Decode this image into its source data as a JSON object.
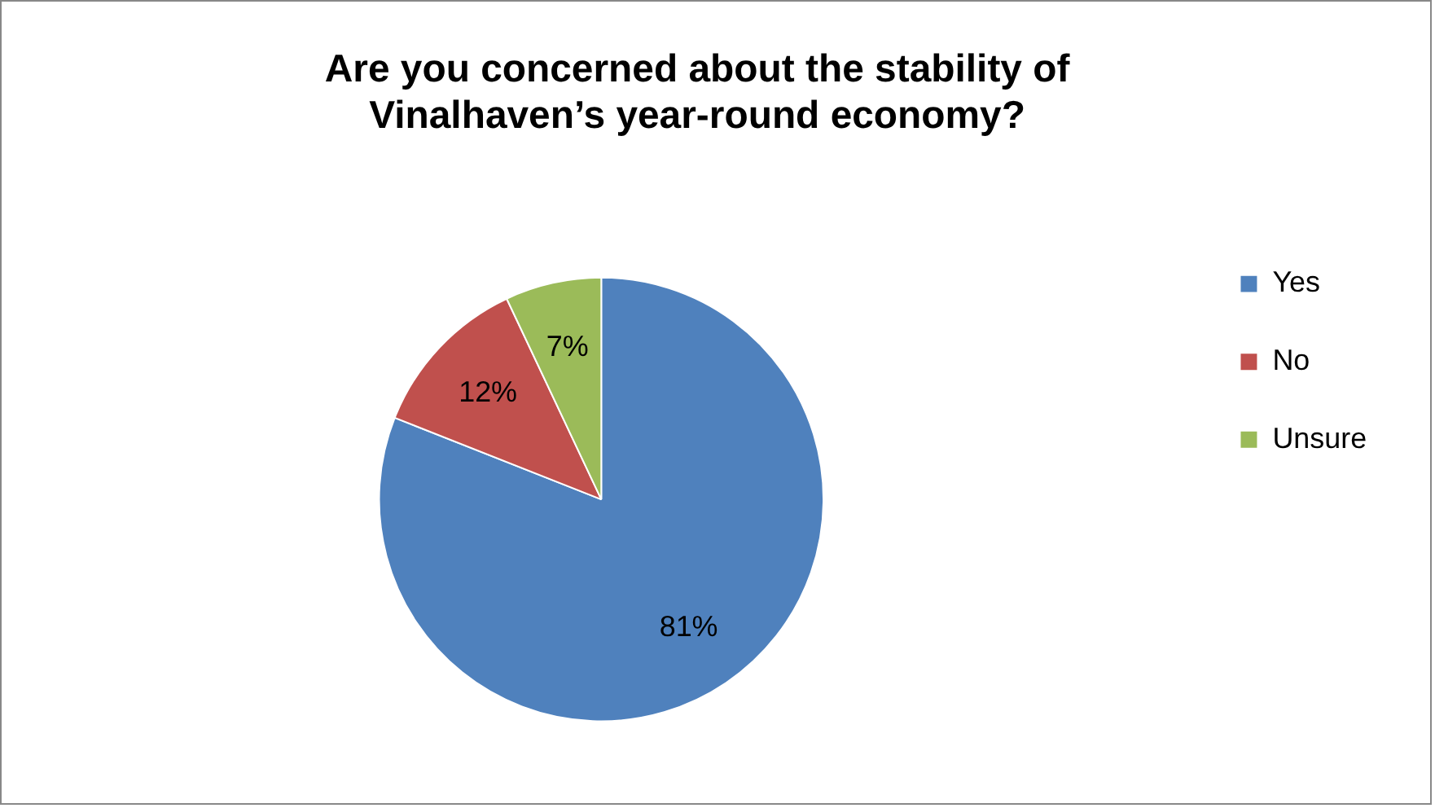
{
  "chart_data": {
    "type": "pie",
    "title": "Are you concerned about the stability of Vinalhaven’s year-round economy?",
    "categories": [
      "Yes",
      "No",
      "Unsure"
    ],
    "values": [
      81,
      12,
      7
    ],
    "colors": [
      "#4f81bd",
      "#c0504d",
      "#9bbb59"
    ],
    "value_labels": [
      "81%",
      "12%",
      "7%"
    ],
    "legend": "right"
  }
}
